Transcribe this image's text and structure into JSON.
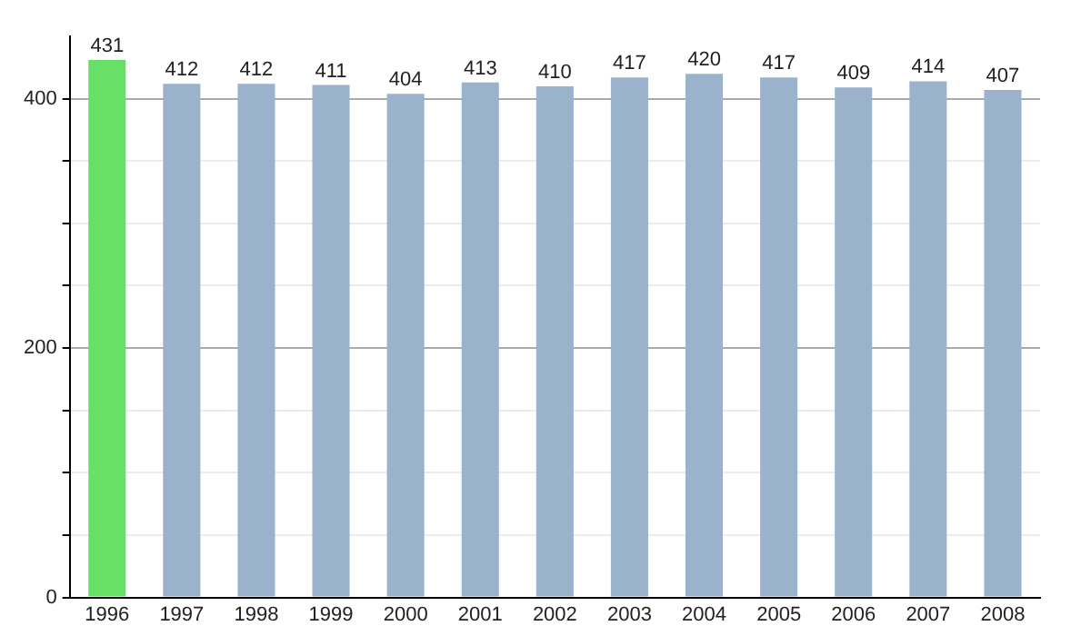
{
  "chart_data": {
    "type": "bar",
    "categories": [
      "1996",
      "1997",
      "1998",
      "1999",
      "2000",
      "2001",
      "2002",
      "2003",
      "2004",
      "2005",
      "2006",
      "2007",
      "2008"
    ],
    "values": [
      431,
      412,
      412,
      411,
      404,
      413,
      410,
      417,
      420,
      417,
      409,
      414,
      407
    ],
    "colors": [
      "#66e066",
      "#9ab2cb",
      "#9ab2cb",
      "#9ab2cb",
      "#9ab2cb",
      "#9ab2cb",
      "#9ab2cb",
      "#9ab2cb",
      "#9ab2cb",
      "#9ab2cb",
      "#9ab2cb",
      "#9ab2cb",
      "#9ab2cb"
    ],
    "ylim": [
      0,
      450
    ],
    "yticks": [
      0,
      {
        "value": 50,
        "label": null
      },
      {
        "value": 100,
        "label": null
      },
      {
        "value": 150,
        "label": null
      },
      200,
      {
        "value": 250,
        "label": null
      },
      {
        "value": 300,
        "label": null
      },
      {
        "value": 350,
        "label": null
      },
      400
    ],
    "grid": "y",
    "data_labels": true
  }
}
